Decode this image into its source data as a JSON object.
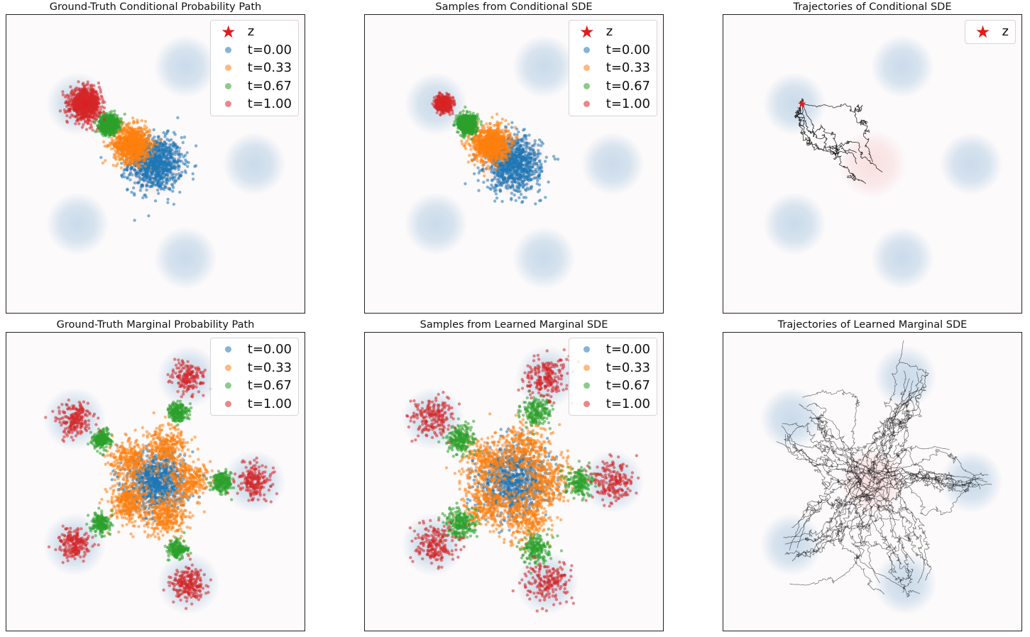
{
  "colors": {
    "t0": "#1f77b4",
    "t1": "#ff7f0e",
    "t2": "#2ca02c",
    "t3": "#d62728",
    "star": "#e41a1c",
    "trajectory": "#000000",
    "source_density": "#f6c8c8",
    "target_density": "#a9c6df"
  },
  "legend": {
    "z_label": "z",
    "t_labels": [
      "t=0.00",
      "t=0.33",
      "t=0.67",
      "t=1.00"
    ]
  },
  "panels": [
    {
      "title": "Ground-Truth Conditional Probability Path",
      "legend_items": [
        "z",
        "t=0.00",
        "t=0.33",
        "t=0.67",
        "t=1.00"
      ]
    },
    {
      "title": "Samples from Conditional SDE",
      "legend_items": [
        "z",
        "t=0.00",
        "t=0.33",
        "t=0.67",
        "t=1.00"
      ]
    },
    {
      "title": "Trajectories of Conditional SDE",
      "legend_items": [
        "z"
      ]
    },
    {
      "title": "Ground-Truth Marginal Probability Path",
      "legend_items": [
        "t=0.00",
        "t=0.33",
        "t=0.67",
        "t=1.00"
      ]
    },
    {
      "title": "Samples from Learned Marginal SDE",
      "legend_items": [
        "t=0.00",
        "t=0.33",
        "t=0.67",
        "t=1.00"
      ]
    },
    {
      "title": "Trajectories of Learned Marginal SDE",
      "legend_items": []
    }
  ],
  "chart_data": [
    {
      "type": "scatter",
      "title": "Ground-Truth Conditional Probability Path",
      "xlim": [
        -10,
        10
      ],
      "ylim": [
        -10,
        10
      ],
      "grid": false,
      "legend_position": "upper-right",
      "target_mode_centers": [
        [
          2.0,
          6.5
        ],
        [
          -5.2,
          4.0
        ],
        [
          6.6,
          0.0
        ],
        [
          -5.2,
          -4.0
        ],
        [
          2.0,
          -6.3
        ]
      ],
      "star_z": [
        -4.7,
        4.0
      ],
      "series": [
        {
          "name": "t=0.00",
          "center": [
            0.0,
            0.0
          ],
          "spread": 1.0,
          "n": 900
        },
        {
          "name": "t=0.33",
          "center": [
            -1.57,
            1.33
          ],
          "spread": 0.67,
          "n": 900
        },
        {
          "name": "t=0.67",
          "center": [
            -3.13,
            2.67
          ],
          "spread": 0.33,
          "n": 900
        },
        {
          "name": "t=1.00",
          "center": [
            -4.7,
            4.0
          ],
          "spread": 0.0,
          "n": 900
        }
      ]
    },
    {
      "type": "scatter",
      "title": "Samples from Conditional SDE",
      "xlim": [
        -10,
        10
      ],
      "ylim": [
        -10,
        10
      ],
      "grid": false,
      "legend_position": "upper-right",
      "target_mode_centers": [
        [
          2.0,
          6.5
        ],
        [
          -5.2,
          4.0
        ],
        [
          6.6,
          0.0
        ],
        [
          -5.2,
          -4.0
        ],
        [
          2.0,
          -6.3
        ]
      ],
      "star_z": [
        -4.7,
        4.0
      ],
      "series": [
        {
          "name": "t=0.00",
          "center": [
            0.0,
            0.0
          ],
          "spread": 1.0,
          "n": 900
        },
        {
          "name": "t=0.33",
          "center": [
            -1.57,
            1.33
          ],
          "spread": 0.67,
          "n": 900
        },
        {
          "name": "t=0.67",
          "center": [
            -3.13,
            2.67
          ],
          "spread": 0.33,
          "n": 900
        },
        {
          "name": "t=1.00",
          "center": [
            -4.7,
            4.0
          ],
          "spread": 0.25,
          "n": 900
        }
      ]
    },
    {
      "type": "line",
      "title": "Trajectories of Conditional SDE",
      "xlim": [
        -10,
        10
      ],
      "ylim": [
        -10,
        10
      ],
      "grid": false,
      "legend_position": "upper-right",
      "target_mode_centers": [
        [
          2.0,
          6.5
        ],
        [
          -5.2,
          4.0
        ],
        [
          6.6,
          0.0
        ],
        [
          -5.2,
          -4.0
        ],
        [
          2.0,
          -6.3
        ]
      ],
      "star_z": [
        -4.7,
        4.0
      ],
      "trajectories": {
        "start": [
          0.0,
          0.0
        ],
        "end": [
          -4.7,
          4.0
        ],
        "count": 5,
        "steps": 180
      }
    },
    {
      "type": "scatter",
      "title": "Ground-Truth Marginal Probability Path",
      "xlim": [
        -10,
        10
      ],
      "ylim": [
        -10,
        10
      ],
      "grid": false,
      "legend_position": "upper-right",
      "target_mode_centers": [
        [
          2.2,
          7.0
        ],
        [
          -5.4,
          4.2
        ],
        [
          6.6,
          0.0
        ],
        [
          -5.4,
          -4.2
        ],
        [
          2.2,
          -6.8
        ]
      ],
      "series": [
        {
          "name": "t=0.00",
          "spread": 1.0,
          "n": 900
        },
        {
          "name": "t=0.33",
          "spread": 0.67,
          "n": 1500
        },
        {
          "name": "t=0.67",
          "spread": 0.33,
          "n": 1000
        },
        {
          "name": "t=1.00",
          "spread": 0.0,
          "n": 1000
        }
      ]
    },
    {
      "type": "scatter",
      "title": "Samples from Learned Marginal SDE",
      "xlim": [
        -10,
        10
      ],
      "ylim": [
        -10,
        10
      ],
      "grid": false,
      "legend_position": "upper-right",
      "target_mode_centers": [
        [
          2.2,
          7.0
        ],
        [
          -5.4,
          4.2
        ],
        [
          6.6,
          0.0
        ],
        [
          -5.4,
          -4.2
        ],
        [
          2.2,
          -6.8
        ]
      ],
      "series": [
        {
          "name": "t=0.00",
          "spread": 1.0,
          "n": 900
        },
        {
          "name": "t=0.33",
          "spread": 0.67,
          "n": 1500
        },
        {
          "name": "t=0.67",
          "spread": 0.33,
          "n": 1000
        },
        {
          "name": "t=1.00",
          "spread": 0.0,
          "n": 1000
        }
      ]
    },
    {
      "type": "line",
      "title": "Trajectories of Learned Marginal SDE",
      "xlim": [
        -10,
        10
      ],
      "ylim": [
        -10,
        10
      ],
      "grid": false,
      "target_mode_centers": [
        [
          2.2,
          7.0
        ],
        [
          -5.4,
          4.2
        ],
        [
          6.6,
          0.0
        ],
        [
          -5.4,
          -4.2
        ],
        [
          2.2,
          -6.8
        ]
      ],
      "trajectories": {
        "count": 60,
        "steps": 140
      }
    }
  ]
}
